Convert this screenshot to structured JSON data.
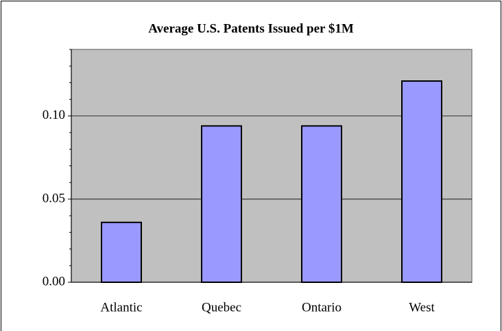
{
  "chart_data": {
    "type": "bar",
    "title": "Average U.S. Patents Issued per $1M",
    "categories": [
      "Atlantic",
      "Quebec",
      "Ontario",
      "West"
    ],
    "values": [
      0.036,
      0.094,
      0.094,
      0.121
    ],
    "color": "#9999ff",
    "ylim": [
      0,
      0.14
    ],
    "yticks": [
      {
        "value": 0,
        "label": "0.00"
      },
      {
        "value": 0.05,
        "label": "0.05"
      },
      {
        "value": 0.1,
        "label": "0.10"
      }
    ],
    "yminorticks": [
      0.01,
      0.02,
      0.03,
      0.04,
      0.06,
      0.07,
      0.08,
      0.09,
      0.11,
      0.12,
      0.13,
      0.14
    ],
    "grid": true,
    "plot_background": "#c0c0c0"
  }
}
